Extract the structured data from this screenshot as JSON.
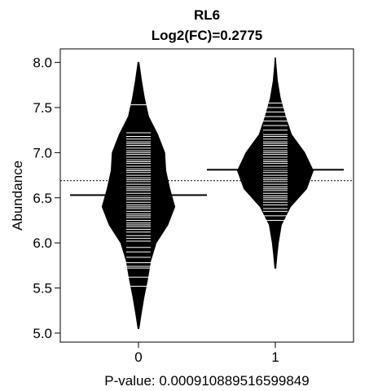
{
  "chart_data": {
    "type": "beanplot",
    "title": "RL6",
    "subtitle": "Log2(FC)=0.2775",
    "xlabel": "P-value: 0.000910889516599849",
    "ylabel": "Abundance",
    "ylim": [
      4.9,
      8.15
    ],
    "yticks": [
      5.0,
      5.5,
      6.0,
      6.5,
      7.0,
      7.5,
      8.0
    ],
    "ytick_labels": [
      "5.0",
      "5.5",
      "6.0",
      "6.5",
      "7.0",
      "7.5",
      "8.0"
    ],
    "overall_mean": 6.69,
    "categories": [
      "0",
      "1"
    ],
    "groups": [
      {
        "label": "0",
        "mean": 6.53,
        "density": [
          [
            5.05,
            0.01
          ],
          [
            5.2,
            0.05
          ],
          [
            5.4,
            0.11
          ],
          [
            5.6,
            0.18
          ],
          [
            5.8,
            0.24
          ],
          [
            6.0,
            0.35
          ],
          [
            6.2,
            0.58
          ],
          [
            6.4,
            0.72
          ],
          [
            6.6,
            0.62
          ],
          [
            6.8,
            0.54
          ],
          [
            7.0,
            0.52
          ],
          [
            7.2,
            0.38
          ],
          [
            7.4,
            0.2
          ],
          [
            7.6,
            0.12
          ],
          [
            7.8,
            0.06
          ],
          [
            8.0,
            0.01
          ]
        ],
        "points": [
          5.52,
          5.62,
          5.72,
          5.74,
          5.78,
          5.84,
          5.9,
          5.95,
          6.02,
          6.05,
          6.08,
          6.12,
          6.15,
          6.18,
          6.2,
          6.22,
          6.25,
          6.28,
          6.3,
          6.32,
          6.35,
          6.38,
          6.4,
          6.42,
          6.45,
          6.48,
          6.5,
          6.52,
          6.55,
          6.58,
          6.6,
          6.62,
          6.65,
          6.68,
          6.7,
          6.72,
          6.75,
          6.78,
          6.8,
          6.82,
          6.85,
          6.88,
          6.9,
          6.92,
          6.95,
          6.98,
          7.0,
          7.02,
          7.05,
          7.08,
          7.1,
          7.12,
          7.15,
          7.18,
          7.22,
          7.53
        ]
      },
      {
        "label": "1",
        "mean": 6.81,
        "density": [
          [
            5.72,
            0.01
          ],
          [
            5.85,
            0.03
          ],
          [
            6.0,
            0.06
          ],
          [
            6.2,
            0.12
          ],
          [
            6.4,
            0.3
          ],
          [
            6.6,
            0.62
          ],
          [
            6.8,
            0.75
          ],
          [
            7.0,
            0.58
          ],
          [
            7.2,
            0.32
          ],
          [
            7.4,
            0.2
          ],
          [
            7.6,
            0.1
          ],
          [
            7.8,
            0.04
          ],
          [
            8.0,
            0.01
          ],
          [
            8.05,
            0.005
          ]
        ],
        "points": [
          6.25,
          6.3,
          6.35,
          6.38,
          6.42,
          6.45,
          6.48,
          6.5,
          6.52,
          6.55,
          6.58,
          6.6,
          6.62,
          6.65,
          6.68,
          6.7,
          6.72,
          6.75,
          6.78,
          6.8,
          6.82,
          6.85,
          6.88,
          6.9,
          6.92,
          6.95,
          6.98,
          7.0,
          7.02,
          7.05,
          7.08,
          7.1,
          7.12,
          7.15,
          7.18,
          7.2,
          7.25,
          7.3,
          7.35,
          7.4,
          7.45,
          7.5,
          7.55
        ]
      }
    ]
  }
}
